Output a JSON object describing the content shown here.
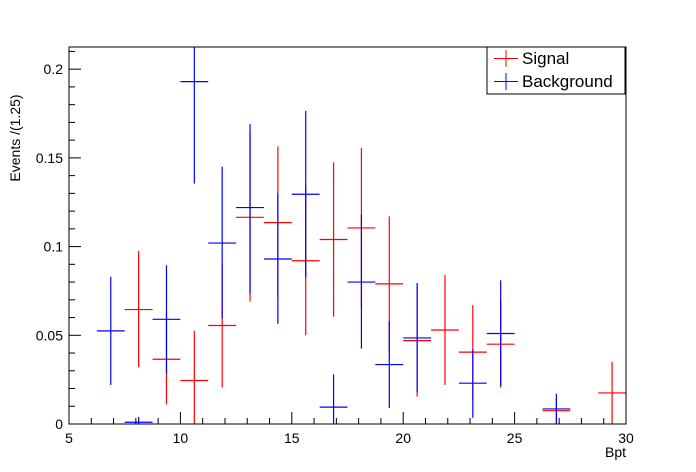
{
  "chart_data": {
    "type": "scatter",
    "style": "histogram-errorbars",
    "title": "",
    "xlabel": "Bpt",
    "ylabel": "Events /(1.25)",
    "xlim": [
      5,
      30
    ],
    "ylim": [
      0,
      0.2125
    ],
    "bin_width": 1.25,
    "x_major_ticks": [
      5,
      10,
      15,
      20,
      25,
      30
    ],
    "y_major_ticks": [
      0,
      0.05,
      0.1,
      0.15,
      0.2
    ],
    "x_tick_labels": [
      "5",
      "10",
      "15",
      "20",
      "25",
      "30"
    ],
    "y_tick_labels": [
      "0",
      "0.05",
      "0.1",
      "0.15",
      "0.2"
    ],
    "legend_position": "top-right",
    "series": [
      {
        "name": "Signal",
        "color": "#ff0000",
        "points": [
          {
            "x": 8.125,
            "y": 0.0645,
            "err_low": 0.0325,
            "err_high": 0.033
          },
          {
            "x": 9.375,
            "y": 0.0365,
            "err_low": 0.0255,
            "err_high": 0.026
          },
          {
            "x": 10.625,
            "y": 0.0245,
            "err_low": 0.0245,
            "err_high": 0.028
          },
          {
            "x": 11.875,
            "y": 0.0555,
            "err_low": 0.035,
            "err_high": 0.035
          },
          {
            "x": 13.125,
            "y": 0.1165,
            "err_low": 0.0475,
            "err_high": 0.048
          },
          {
            "x": 14.375,
            "y": 0.1135,
            "err_low": 0.0425,
            "err_high": 0.043
          },
          {
            "x": 15.625,
            "y": 0.092,
            "err_low": 0.042,
            "err_high": 0.042
          },
          {
            "x": 16.875,
            "y": 0.104,
            "err_low": 0.0435,
            "err_high": 0.0435
          },
          {
            "x": 18.125,
            "y": 0.1105,
            "err_low": 0.0455,
            "err_high": 0.045
          },
          {
            "x": 19.375,
            "y": 0.079,
            "err_low": 0.0385,
            "err_high": 0.038
          },
          {
            "x": 20.625,
            "y": 0.047,
            "err_low": 0.0315,
            "err_high": 0.031
          },
          {
            "x": 21.875,
            "y": 0.053,
            "err_low": 0.031,
            "err_high": 0.031
          },
          {
            "x": 23.125,
            "y": 0.0405,
            "err_low": 0.0265,
            "err_high": 0.0265
          },
          {
            "x": 24.375,
            "y": 0.045,
            "err_low": 0.0245,
            "err_high": 0.0245
          },
          {
            "x": 26.875,
            "y": 0.0075,
            "err_low": 0.0075,
            "err_high": 0.007
          },
          {
            "x": 29.375,
            "y": 0.0175,
            "err_low": 0.0175,
            "err_high": 0.0175
          }
        ]
      },
      {
        "name": "Background",
        "color": "#0000ff",
        "points": [
          {
            "x": 6.875,
            "y": 0.0525,
            "err_low": 0.0305,
            "err_high": 0.0305
          },
          {
            "x": 8.125,
            "y": 0.001,
            "err_low": 0.001,
            "err_high": 0.003
          },
          {
            "x": 9.375,
            "y": 0.059,
            "err_low": 0.0305,
            "err_high": 0.0305
          },
          {
            "x": 10.625,
            "y": 0.193,
            "err_low": 0.0575,
            "err_high": 0.0195
          },
          {
            "x": 11.875,
            "y": 0.102,
            "err_low": 0.0425,
            "err_high": 0.043
          },
          {
            "x": 13.125,
            "y": 0.122,
            "err_low": 0.0485,
            "err_high": 0.047
          },
          {
            "x": 14.375,
            "y": 0.093,
            "err_low": 0.0365,
            "err_high": 0.037
          },
          {
            "x": 15.625,
            "y": 0.1295,
            "err_low": 0.047,
            "err_high": 0.047
          },
          {
            "x": 16.875,
            "y": 0.0095,
            "err_low": 0.0095,
            "err_high": 0.0185
          },
          {
            "x": 18.125,
            "y": 0.08,
            "err_low": 0.0375,
            "err_high": 0.038
          },
          {
            "x": 19.375,
            "y": 0.0335,
            "err_low": 0.0245,
            "err_high": 0.0245
          },
          {
            "x": 20.625,
            "y": 0.0485,
            "err_low": 0.0305,
            "err_high": 0.031
          },
          {
            "x": 23.125,
            "y": 0.023,
            "err_low": 0.0195,
            "err_high": 0.019
          },
          {
            "x": 24.375,
            "y": 0.051,
            "err_low": 0.0295,
            "err_high": 0.03
          },
          {
            "x": 26.875,
            "y": 0.0085,
            "err_low": 0.0085,
            "err_high": 0.0085
          }
        ]
      }
    ]
  }
}
